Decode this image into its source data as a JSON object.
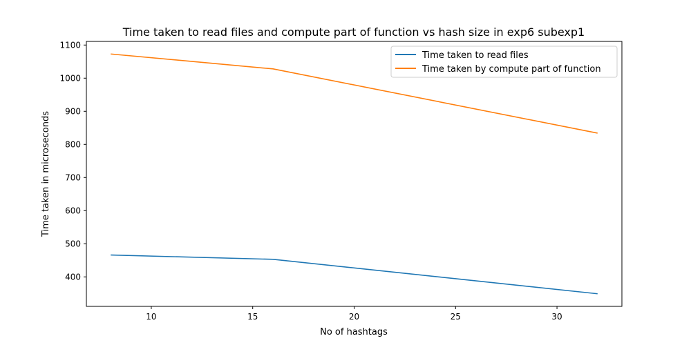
{
  "chart_data": {
    "type": "line",
    "title": "Time taken to read files and compute part of function vs hash size in exp6 subexp1",
    "xlabel": "No of hashtags",
    "ylabel": "Time taken in microseconds",
    "x": [
      8,
      16,
      32
    ],
    "xlim": [
      6.8,
      33.2
    ],
    "ylim": [
      311,
      1111
    ],
    "xticks": [
      10,
      15,
      20,
      25,
      30
    ],
    "yticks": [
      400,
      500,
      600,
      700,
      800,
      900,
      1000,
      1100
    ],
    "grid": false,
    "legend_position": "top-right",
    "series": [
      {
        "name": "Time taken to read files",
        "color": "#1f77b4",
        "values": [
          466,
          453,
          349
        ]
      },
      {
        "name": "Time taken by compute part of function",
        "color": "#ff7f0e",
        "values": [
          1073,
          1028,
          834
        ]
      }
    ]
  }
}
